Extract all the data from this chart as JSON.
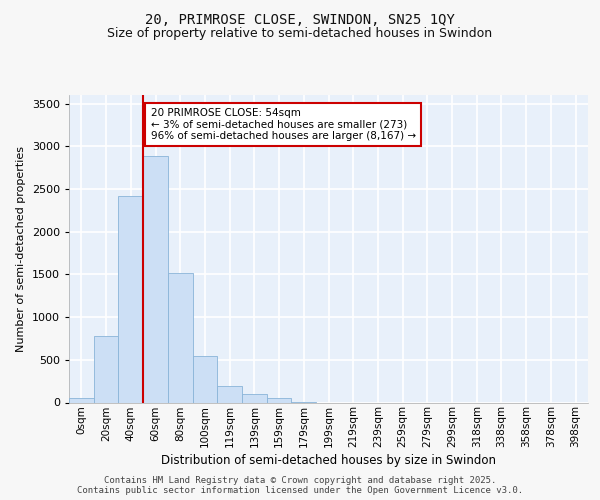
{
  "title": "20, PRIMROSE CLOSE, SWINDON, SN25 1QY",
  "subtitle": "Size of property relative to semi-detached houses in Swindon",
  "xlabel": "Distribution of semi-detached houses by size in Swindon",
  "ylabel": "Number of semi-detached properties",
  "categories": [
    "0sqm",
    "20sqm",
    "40sqm",
    "60sqm",
    "80sqm",
    "100sqm",
    "119sqm",
    "139sqm",
    "159sqm",
    "179sqm",
    "199sqm",
    "219sqm",
    "239sqm",
    "259sqm",
    "279sqm",
    "299sqm",
    "318sqm",
    "338sqm",
    "358sqm",
    "378sqm",
    "398sqm"
  ],
  "bar_values": [
    50,
    780,
    2420,
    2890,
    1520,
    550,
    190,
    95,
    50,
    10,
    0,
    0,
    0,
    0,
    0,
    0,
    0,
    0,
    0,
    0,
    0
  ],
  "bar_color": "#ccdff5",
  "bar_edge_color": "#8ab4d8",
  "plot_bg_color": "#e8f0fa",
  "fig_bg_color": "#f7f7f7",
  "grid_color": "#ffffff",
  "vline_x": 3.0,
  "vline_color": "#cc0000",
  "annotation_text": "20 PRIMROSE CLOSE: 54sqm\n← 3% of semi-detached houses are smaller (273)\n96% of semi-detached houses are larger (8,167) →",
  "annotation_box_facecolor": "#ffffff",
  "annotation_box_edgecolor": "#cc0000",
  "footer_text": "Contains HM Land Registry data © Crown copyright and database right 2025.\nContains public sector information licensed under the Open Government Licence v3.0.",
  "ylim": [
    0,
    3600
  ],
  "yticks": [
    0,
    500,
    1000,
    1500,
    2000,
    2500,
    3000,
    3500
  ]
}
